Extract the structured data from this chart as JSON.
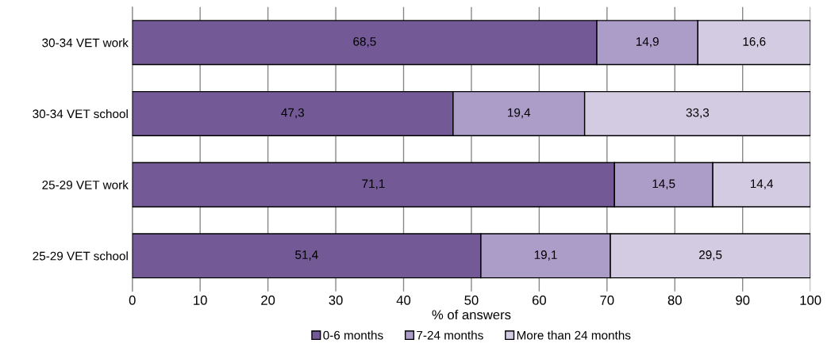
{
  "chart_data": {
    "type": "bar",
    "orientation": "horizontal",
    "stacked": true,
    "xlabel": "% of answers",
    "categories": [
      "30-34 VET work",
      "30-34 VET school",
      "25-29 VET work",
      "25-29 VET school"
    ],
    "series": [
      {
        "name": "0-6 months",
        "color": "#735a96",
        "values": [
          68.5,
          47.3,
          71.1,
          51.4
        ]
      },
      {
        "name": "7-24 months",
        "color": "#ab9cc8",
        "values": [
          14.9,
          19.4,
          14.5,
          19.1
        ]
      },
      {
        "name": "More than 24 months",
        "color": "#d3cbe2",
        "values": [
          16.6,
          33.3,
          14.4,
          29.5
        ]
      }
    ],
    "value_labels": [
      [
        "68,5",
        "47,3",
        "71,1",
        "51,4"
      ],
      [
        "14,9",
        "19,4",
        "14,5",
        "19,1"
      ],
      [
        "16,6",
        "33,3",
        "14,4",
        "29,5"
      ]
    ],
    "xlim": [
      0,
      100
    ],
    "xticks": [
      0,
      10,
      20,
      30,
      40,
      50,
      60,
      70,
      80,
      90,
      100
    ],
    "grid": "x",
    "legend": "bottom"
  }
}
